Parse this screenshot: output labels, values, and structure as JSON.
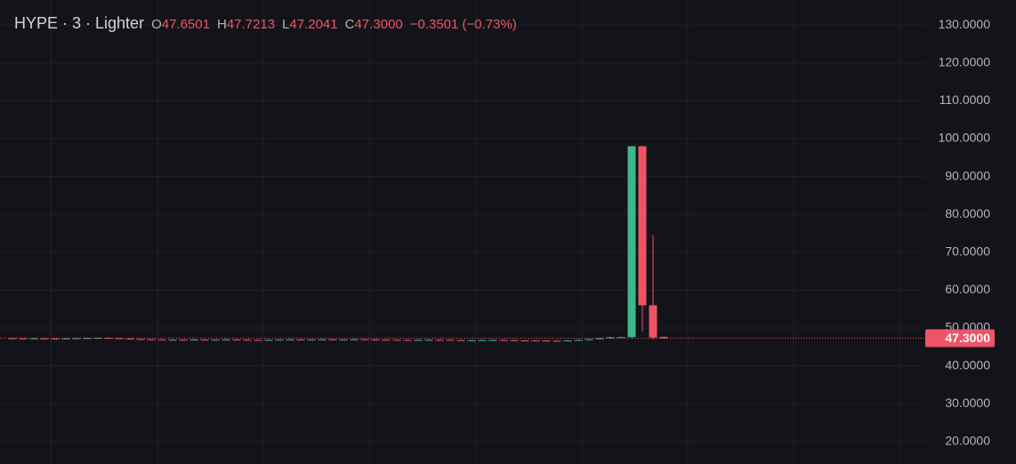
{
  "chart_data": {
    "type": "candlestick",
    "symbol": "HYPE · 3 · Lighter",
    "legend": [
      {
        "label": "O",
        "value": "47.6501"
      },
      {
        "label": "H",
        "value": "47.7213"
      },
      {
        "label": "L",
        "value": "47.2041"
      },
      {
        "label": "C",
        "value": "47.3000"
      }
    ],
    "change": "−0.3501 (−0.73%)",
    "up_color": "#3fb68b",
    "down_color": "#ef5466",
    "open": [
      47.3,
      47.28,
      47.25,
      47.27,
      47.24,
      47.22,
      47.26,
      47.3,
      47.35,
      47.4,
      47.32,
      47.2,
      47.1,
      47.02,
      46.95,
      46.9,
      46.92,
      46.88,
      46.95,
      46.9,
      46.93,
      46.97,
      46.92,
      46.85,
      46.8,
      46.88,
      46.95,
      46.98,
      46.93,
      46.96,
      47.0,
      46.95,
      46.98,
      47.02,
      46.96,
      46.92,
      46.9,
      46.85,
      46.82,
      46.86,
      46.9,
      46.88,
      46.8,
      46.75,
      46.78,
      46.82,
      46.85,
      46.8,
      46.72,
      46.7,
      46.68,
      46.65,
      46.62,
      46.7,
      46.85,
      47.05,
      47.3,
      47.55,
      47.6,
      98.0,
      56.0,
      47.6501
    ],
    "high": [
      47.4,
      47.38,
      47.37,
      47.37,
      47.34,
      47.36,
      47.4,
      47.45,
      47.5,
      47.5,
      47.42,
      47.3,
      47.2,
      47.12,
      47.05,
      47.02,
      47.02,
      47.05,
      47.05,
      47.03,
      47.07,
      47.07,
      47.02,
      46.95,
      46.98,
      47.05,
      47.08,
      47.08,
      47.06,
      47.1,
      47.1,
      47.08,
      47.12,
      47.12,
      47.06,
      47.02,
      47.0,
      46.95,
      46.96,
      47.0,
      47.0,
      46.98,
      46.9,
      46.88,
      46.92,
      46.95,
      46.95,
      46.9,
      46.82,
      46.8,
      46.78,
      46.75,
      46.8,
      46.95,
      47.15,
      47.4,
      47.65,
      47.7,
      98.0,
      98.0,
      74.5,
      47.7213
    ],
    "low": [
      47.18,
      47.15,
      47.15,
      47.14,
      47.12,
      47.12,
      47.16,
      47.2,
      47.25,
      47.22,
      47.1,
      47.0,
      46.92,
      46.85,
      46.8,
      46.8,
      46.78,
      46.78,
      46.8,
      46.8,
      46.83,
      46.82,
      46.75,
      46.7,
      46.7,
      46.78,
      46.85,
      46.83,
      46.83,
      46.86,
      46.85,
      46.85,
      46.88,
      46.86,
      46.82,
      46.8,
      46.75,
      46.72,
      46.72,
      46.76,
      46.78,
      46.7,
      46.65,
      46.65,
      46.68,
      46.72,
      46.7,
      46.62,
      46.6,
      46.58,
      46.55,
      46.52,
      46.52,
      46.6,
      46.75,
      46.95,
      47.2,
      47.45,
      47.4,
      49.0,
      47.0,
      47.2041
    ],
    "close": [
      47.28,
      47.25,
      47.27,
      47.24,
      47.22,
      47.26,
      47.3,
      47.35,
      47.4,
      47.32,
      47.2,
      47.1,
      47.02,
      46.95,
      46.9,
      46.92,
      46.88,
      46.95,
      46.9,
      46.93,
      46.97,
      46.92,
      46.85,
      46.8,
      46.88,
      46.95,
      46.98,
      46.93,
      46.96,
      47.0,
      46.95,
      46.98,
      47.02,
      46.96,
      46.92,
      46.9,
      46.85,
      46.82,
      46.86,
      46.9,
      46.88,
      46.8,
      46.75,
      46.78,
      46.82,
      46.85,
      46.8,
      46.72,
      46.7,
      46.68,
      46.65,
      46.62,
      46.7,
      46.85,
      47.05,
      47.3,
      47.55,
      47.6,
      98.0,
      56.0,
      47.5,
      47.3
    ],
    "last_price": {
      "value": 47.3,
      "label": "47.3000"
    },
    "ylim": [
      14.1,
      136.6
    ],
    "yticks": [
      {
        "value": 20,
        "label": "20.0000"
      },
      {
        "value": 30,
        "label": "30.0000"
      },
      {
        "value": 40,
        "label": "40.0000"
      },
      {
        "value": 50,
        "label": "50.0000"
      },
      {
        "value": 60,
        "label": "60.0000"
      },
      {
        "value": 70,
        "label": "70.0000"
      },
      {
        "value": 80,
        "label": "80.0000"
      },
      {
        "value": 90,
        "label": "90.0000"
      },
      {
        "value": 100,
        "label": "100.0000"
      },
      {
        "value": 110,
        "label": "110.0000"
      },
      {
        "value": 120,
        "label": "120.0000"
      },
      {
        "value": 130,
        "label": "130.0000"
      }
    ],
    "grid": true
  }
}
